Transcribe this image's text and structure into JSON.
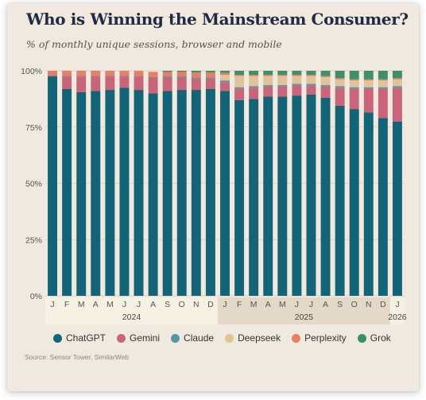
{
  "title": "Who is Winning the Mainstream Consumer?",
  "subtitle": "% of monthly unique sessions, browser and mobile",
  "source": "Source: Sensor Tower, SimilarWeb",
  "colors": {
    "ChatGPT": "#136477",
    "Gemini": "#c9657b",
    "Claude": "#5a93a6",
    "Deepseek": "#e2c299",
    "Perplexity": "#e97e62",
    "Grok": "#3e8f6a",
    "year_band_a": "#f7f1e3",
    "year_band_b": "#e3d9c6"
  },
  "chart_data": {
    "type": "bar",
    "stacked": true,
    "categories": [
      "J",
      "F",
      "M",
      "A",
      "M",
      "J",
      "J",
      "A",
      "S",
      "O",
      "N",
      "D",
      "J",
      "F",
      "M",
      "A",
      "M",
      "J",
      "J",
      "A",
      "S",
      "O",
      "N",
      "D",
      "J"
    ],
    "year_labels": [
      {
        "label": "2024",
        "start": 0,
        "end": 11
      },
      {
        "label": "2025",
        "start": 12,
        "end": 23
      },
      {
        "label": "2026",
        "start": 24,
        "end": 24
      }
    ],
    "ylim": [
      0,
      100
    ],
    "yticks": [
      0,
      25,
      50,
      75,
      100
    ],
    "ytick_labels": [
      "0%",
      "25%",
      "50%",
      "75%",
      "100%"
    ],
    "legend": [
      "ChatGPT",
      "Gemini",
      "Claude",
      "Deepseek",
      "Perplexity",
      "Grok"
    ],
    "series": [
      {
        "name": "ChatGPT",
        "values": [
          97.5,
          92,
          90.5,
          91,
          91.5,
          92.5,
          91.5,
          90,
          91,
          91.5,
          91.5,
          92,
          91,
          87,
          87.5,
          88.5,
          88.5,
          89,
          89.5,
          88,
          84.5,
          83,
          81.5,
          79,
          77.5
        ]
      },
      {
        "name": "Gemini",
        "values": [
          0.5,
          5.5,
          7,
          6.5,
          6,
          5,
          6,
          7,
          6,
          5.5,
          5,
          4.5,
          4,
          5,
          5,
          4.5,
          4.5,
          4.5,
          4,
          5,
          8,
          9,
          10.5,
          13,
          15
        ]
      },
      {
        "name": "Claude",
        "values": [
          0.2,
          0.3,
          0.3,
          0.3,
          0.3,
          0.3,
          0.3,
          0.3,
          0.5,
          0.5,
          0.5,
          0.5,
          0.7,
          0.7,
          0.7,
          0.7,
          0.7,
          0.7,
          0.7,
          0.7,
          0.7,
          0.7,
          0.7,
          0.7,
          0.7
        ]
      },
      {
        "name": "Deepseek",
        "values": [
          0,
          0,
          0,
          0,
          0,
          0,
          0,
          0,
          0,
          0,
          0,
          0,
          2.5,
          5,
          4.5,
          4,
          4,
          3.5,
          3.5,
          3.5,
          3,
          3,
          3,
          3,
          3
        ]
      },
      {
        "name": "Perplexity",
        "values": [
          1.8,
          2.2,
          2.2,
          2.2,
          2.2,
          2.2,
          2.2,
          2.2,
          2,
          2,
          2.2,
          2.2,
          0.9,
          0.5,
          0.5,
          0.5,
          0.5,
          0.5,
          0.5,
          0.5,
          0.5,
          0.5,
          0.5,
          0.5,
          0.5
        ]
      },
      {
        "name": "Grok",
        "values": [
          0,
          0,
          0,
          0,
          0,
          0,
          0,
          0,
          0.5,
          0.5,
          0.8,
          0.8,
          0.9,
          1.8,
          1.8,
          1.8,
          1.8,
          1.8,
          1.8,
          2.3,
          3.3,
          3.8,
          3.8,
          3.8,
          3.3
        ]
      }
    ]
  }
}
